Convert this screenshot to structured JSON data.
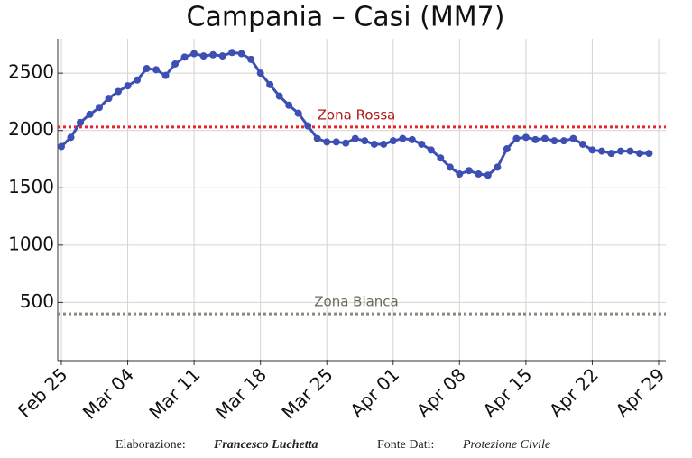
{
  "chart_data": {
    "type": "line",
    "title": "Campania – Casi (MM7)",
    "x": [
      "Feb 25",
      "Feb 26",
      "Feb 27",
      "Feb 28",
      "Mar 01",
      "Mar 02",
      "Mar 03",
      "Mar 04",
      "Mar 05",
      "Mar 06",
      "Mar 07",
      "Mar 08",
      "Mar 09",
      "Mar 10",
      "Mar 11",
      "Mar 12",
      "Mar 13",
      "Mar 14",
      "Mar 15",
      "Mar 16",
      "Mar 17",
      "Mar 18",
      "Mar 19",
      "Mar 20",
      "Mar 21",
      "Mar 22",
      "Mar 23",
      "Mar 24",
      "Mar 25",
      "Mar 26",
      "Mar 27",
      "Mar 28",
      "Mar 29",
      "Mar 30",
      "Mar 31",
      "Apr 01",
      "Apr 02",
      "Apr 03",
      "Apr 04",
      "Apr 05",
      "Apr 06",
      "Apr 07",
      "Apr 08",
      "Apr 09",
      "Apr 10",
      "Apr 11",
      "Apr 12",
      "Apr 13",
      "Apr 14",
      "Apr 15",
      "Apr 16",
      "Apr 17",
      "Apr 18",
      "Apr 19",
      "Apr 20",
      "Apr 21",
      "Apr 22",
      "Apr 23",
      "Apr 24",
      "Apr 25",
      "Apr 26",
      "Apr 27",
      "Apr 28"
    ],
    "series": [
      {
        "color": "#3d4fb3",
        "values": [
          1860,
          1940,
          2070,
          2140,
          2200,
          2280,
          2340,
          2390,
          2440,
          2540,
          2530,
          2480,
          2580,
          2640,
          2670,
          2650,
          2660,
          2650,
          2680,
          2670,
          2620,
          2500,
          2400,
          2300,
          2220,
          2150,
          2040,
          1930,
          1900,
          1900,
          1890,
          1930,
          1910,
          1880,
          1880,
          1910,
          1930,
          1920,
          1880,
          1830,
          1760,
          1680,
          1620,
          1650,
          1620,
          1610,
          1680,
          1840,
          1930,
          1940,
          1920,
          1930,
          1910,
          1910,
          1930,
          1880,
          1830,
          1820,
          1800,
          1820,
          1820,
          1800,
          1800
        ]
      }
    ],
    "reference_lines": [
      {
        "label": "Zona Rossa",
        "value": 2030,
        "color": "#e8262a",
        "label_color": "#b01818"
      },
      {
        "label": "Zona Bianca",
        "value": 400,
        "color": "#8a8a7a",
        "label_color": "#6a6a5a"
      }
    ],
    "xlim": [
      "Feb 25",
      "Apr 29"
    ],
    "xticks": [
      "Feb 25",
      "Mar 04",
      "Mar 11",
      "Mar 18",
      "Mar 25",
      "Apr 01",
      "Apr 08",
      "Apr 15",
      "Apr 22",
      "Apr 29"
    ],
    "ylim": [
      0,
      2800
    ],
    "yticks": [
      500,
      1000,
      1500,
      2000,
      2500
    ],
    "grid": true,
    "footer": {
      "author_label": "Elaborazione:",
      "author": "Francesco Luchetta",
      "source_label": "Fonte Dati:",
      "source": "Protezione Civile"
    }
  }
}
